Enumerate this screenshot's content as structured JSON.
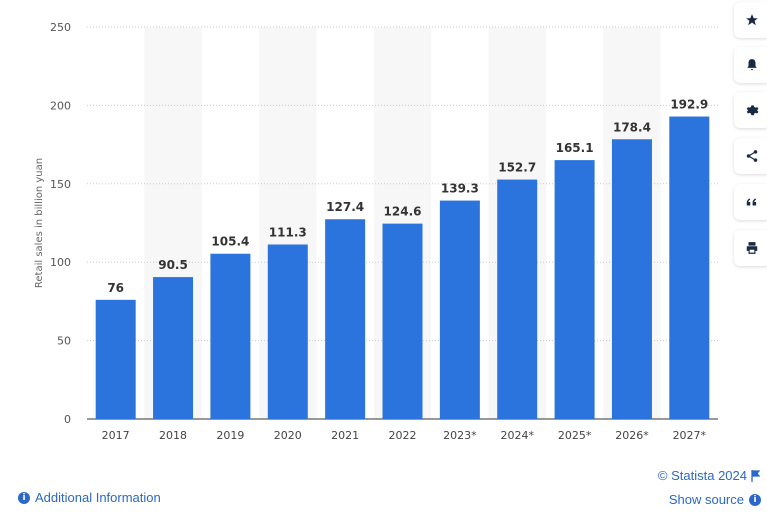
{
  "chart_data": {
    "type": "bar",
    "ylabel": "Retail sales in billion yuan",
    "xlabel": "",
    "ylim": [
      0,
      250
    ],
    "yticks": [
      "0",
      "50",
      "100",
      "150",
      "200",
      "250"
    ],
    "categories": [
      "2017",
      "2018",
      "2019",
      "2020",
      "2021",
      "2022",
      "2023*",
      "2024*",
      "2025*",
      "2026*",
      "2027*"
    ],
    "values": [
      76,
      90.5,
      105.4,
      111.3,
      127.4,
      124.6,
      139.3,
      152.7,
      165.1,
      178.4,
      192.9
    ],
    "value_labels": [
      "76",
      "90.5",
      "105.4",
      "111.3",
      "127.4",
      "124.6",
      "139.3",
      "152.7",
      "165.1",
      "178.4",
      "192.9"
    ],
    "bar_color": "#2b74dd",
    "stripe_color": "#f7f7f7",
    "grid": true
  },
  "footer": {
    "additional_info": "Additional Information",
    "copyright": "© Statista 2024",
    "show_source": "Show source"
  },
  "sidebar": {
    "buttons": [
      "star-icon",
      "bell-icon",
      "gear-icon",
      "share-icon",
      "quote-icon",
      "print-icon"
    ]
  }
}
